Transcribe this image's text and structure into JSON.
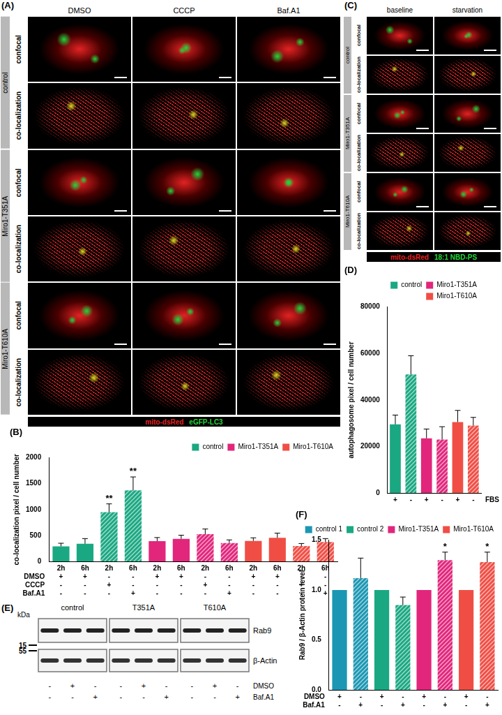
{
  "figure": {
    "A": {
      "title": "(A)",
      "columns": [
        "DMSO",
        "CCCP",
        "Baf.A1"
      ],
      "groups": [
        "control",
        "Miro1-T351A",
        "Miro1-T610A"
      ],
      "rows": [
        "confocal",
        "co-localization"
      ],
      "stains": [
        {
          "name": "mito-dsRed",
          "color": "#e32222"
        },
        {
          "name": "eGFP-LC3",
          "color": "#22d43a"
        }
      ]
    },
    "C": {
      "title": "(C)",
      "columns": [
        "baseline",
        "starvation"
      ],
      "groups": [
        "control",
        "Miro1-T351A",
        "Miro1-T610A"
      ],
      "rows": [
        "confocal",
        "co-localization"
      ],
      "stains": [
        {
          "name": "mito-dsRed",
          "color": "#e32222"
        },
        {
          "name": "18:1 NBD-PS",
          "color": "#22d43a"
        }
      ]
    },
    "E": {
      "title": "(E)",
      "unit": "kDa",
      "markers": [
        15,
        55
      ],
      "groups": [
        "control",
        "T351A",
        "T610A"
      ],
      "proteins": [
        "Rab9",
        "β-Actin"
      ],
      "conditions": [
        {
          "name": "DMSO",
          "values": [
            "-",
            "+",
            "-"
          ]
        },
        {
          "name": "Baf.A1",
          "values": [
            "-",
            "-",
            "+"
          ]
        }
      ]
    }
  },
  "chart_data": [
    {
      "type": "bar",
      "title": "(B)",
      "ylabel": "co-localization pixel / cell number",
      "categories": [
        "2h",
        "6h",
        "2h",
        "6h",
        "2h",
        "6h",
        "2h",
        "6h",
        "2h",
        "6h",
        "2h",
        "6h"
      ],
      "conditions": [
        {
          "name": "DMSO",
          "values": [
            "+",
            "+",
            "-",
            "-",
            "+",
            "+",
            "-",
            "-",
            "+",
            "+",
            "-",
            "-"
          ]
        },
        {
          "name": "CCCP",
          "values": [
            "-",
            "-",
            "+",
            "-",
            "-",
            "-",
            "+",
            "-",
            "-",
            "-",
            "+",
            "-"
          ]
        },
        {
          "name": "Baf.A1",
          "values": [
            "-",
            "-",
            "-",
            "+",
            "-",
            "-",
            "-",
            "+",
            "-",
            "-",
            "-",
            "+"
          ]
        }
      ],
      "series": [
        {
          "name": "control",
          "color": "#1aa882",
          "values": [
            290,
            340,
            950,
            1370,
            null,
            null,
            null,
            null,
            null,
            null,
            null,
            null
          ],
          "errors": [
            60,
            100,
            160,
            260,
            null,
            null,
            null,
            null,
            null,
            null,
            null,
            null
          ],
          "significance": [
            null,
            null,
            "**",
            "**",
            null,
            null,
            null,
            null,
            null,
            null,
            null,
            null
          ]
        },
        {
          "name": "Miro1-T351A",
          "color": "#e2267c",
          "values": [
            null,
            null,
            null,
            null,
            390,
            435,
            525,
            355,
            null,
            null,
            null,
            null
          ],
          "errors": [
            null,
            null,
            null,
            null,
            70,
            70,
            100,
            60,
            null,
            null,
            null,
            null
          ]
        },
        {
          "name": "Miro1-T610A",
          "color": "#f04e45",
          "values": [
            null,
            null,
            null,
            null,
            null,
            null,
            null,
            null,
            395,
            455,
            295,
            375
          ],
          "errors": [
            null,
            null,
            null,
            null,
            null,
            null,
            null,
            null,
            60,
            90,
            50,
            65
          ]
        }
      ],
      "ylim": [
        0,
        2000
      ],
      "yticks": [
        0,
        500,
        1000,
        1500,
        2000
      ],
      "grid": false,
      "legend": "top-right"
    },
    {
      "type": "bar",
      "title": "(D)",
      "ylabel": "autophagosome pixel / cell number",
      "categories": [
        null,
        null,
        null,
        null,
        null,
        null
      ],
      "conditions": [
        {
          "name": "FBS",
          "values": [
            "+",
            "-",
            "+",
            "-",
            "+",
            "-"
          ]
        }
      ],
      "series": [
        {
          "name": "control",
          "color": "#1aa882",
          "values": [
            29500,
            51000,
            null,
            null,
            null,
            null
          ],
          "errors": [
            4000,
            8000,
            null,
            null,
            null,
            null
          ]
        },
        {
          "name": "Miro1-T351A",
          "color": "#e2267c",
          "values": [
            null,
            null,
            23500,
            23000,
            null,
            null
          ],
          "errors": [
            null,
            null,
            4000,
            5500,
            null,
            null
          ]
        },
        {
          "name": "Miro1-T610A",
          "color": "#f04e45",
          "values": [
            null,
            null,
            null,
            null,
            30500,
            29000
          ],
          "errors": [
            null,
            null,
            null,
            null,
            5000,
            3500
          ]
        }
      ],
      "ylim": [
        0,
        80000
      ],
      "yticks": [
        0,
        20000,
        40000,
        60000,
        80000
      ],
      "grid": false,
      "legend": "top-right"
    },
    {
      "type": "bar",
      "title": "(F)",
      "ylabel": "Rab9 / β-Actin protein level",
      "categories": [
        null,
        null,
        null,
        null,
        null,
        null,
        null,
        null
      ],
      "conditions": [
        {
          "name": "DMSO",
          "values": [
            "+",
            "-",
            "+",
            "-",
            "+",
            "-",
            "+",
            "-"
          ]
        },
        {
          "name": "Baf.A1",
          "values": [
            "-",
            "+",
            "-",
            "+",
            "-",
            "+",
            "-",
            "+"
          ]
        }
      ],
      "series": [
        {
          "name": "control 1",
          "color": "#1b97b3",
          "values": [
            1.0,
            1.12,
            null,
            null,
            null,
            null,
            null,
            null
          ],
          "errors": [
            null,
            0.2,
            null,
            null,
            null,
            null,
            null,
            null
          ]
        },
        {
          "name": "control 2",
          "color": "#1aa882",
          "values": [
            null,
            null,
            1.0,
            0.85,
            null,
            null,
            null,
            null
          ],
          "errors": [
            null,
            null,
            null,
            0.08,
            null,
            null,
            null,
            null
          ]
        },
        {
          "name": "Miro1-T351A",
          "color": "#e2267c",
          "values": [
            null,
            null,
            null,
            null,
            1.0,
            1.3,
            null,
            null
          ],
          "errors": [
            null,
            null,
            null,
            null,
            null,
            0.08,
            null,
            null
          ],
          "significance": [
            null,
            null,
            null,
            null,
            null,
            "*",
            null,
            null
          ]
        },
        {
          "name": "Miro1-T610A",
          "color": "#f04e45",
          "values": [
            null,
            null,
            null,
            null,
            null,
            null,
            1.0,
            1.28
          ],
          "errors": [
            null,
            null,
            null,
            null,
            null,
            null,
            null,
            0.1
          ],
          "significance": [
            null,
            null,
            null,
            null,
            null,
            null,
            null,
            "*"
          ]
        }
      ],
      "ylim": [
        0,
        1.5
      ],
      "yticks": [
        {
          "value": 0,
          "label": "0.0"
        },
        0.5,
        {
          "value": 1,
          "label": "1.0"
        },
        1.5
      ],
      "grid": false,
      "legend": "top-right"
    }
  ]
}
